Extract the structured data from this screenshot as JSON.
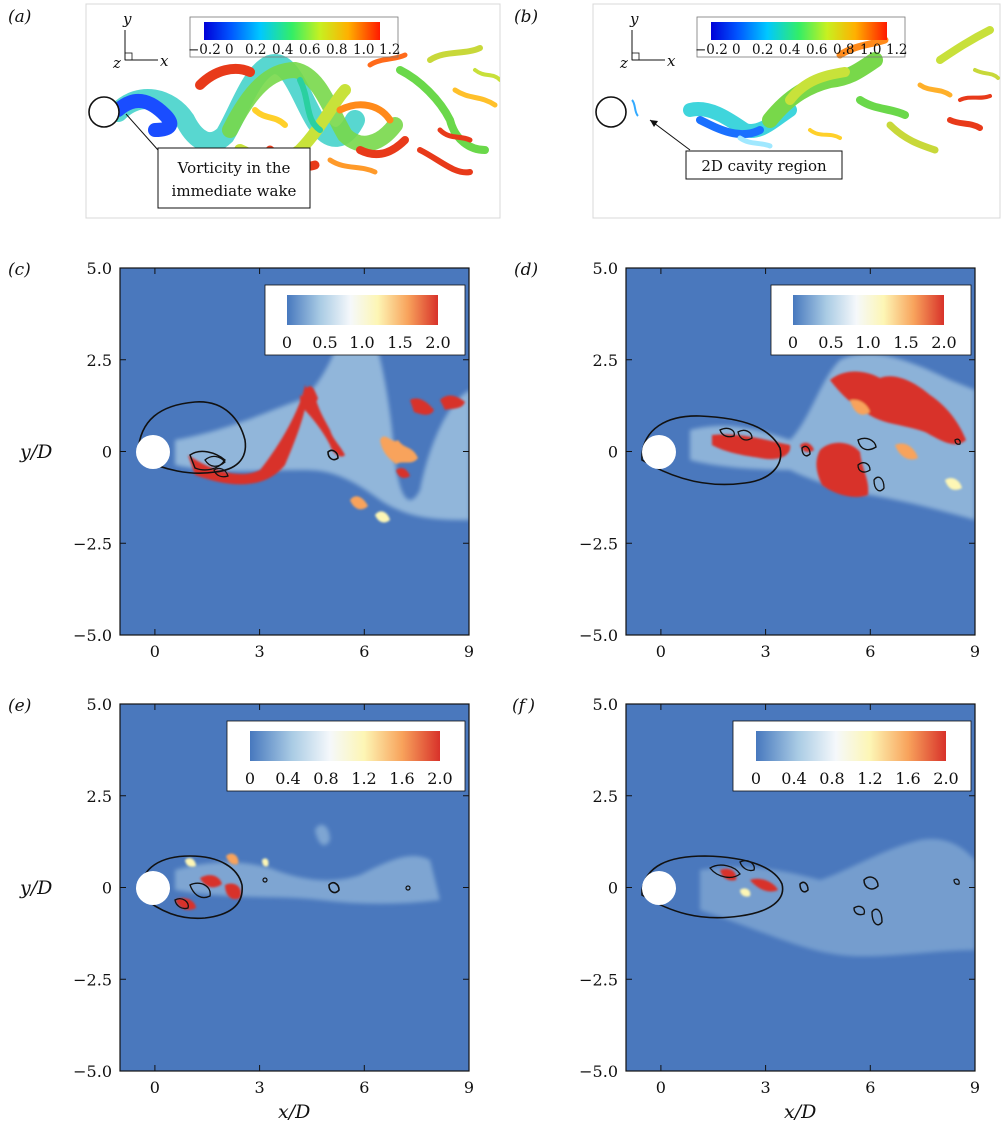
{
  "figure": {
    "panels": [
      {
        "id": "a",
        "label": "(a)",
        "kind": "isosurface",
        "colorbar_ticks": [
          "−0.2",
          "0",
          "0.2",
          "0.4",
          "0.6",
          "0.8",
          "1.0",
          "1.2"
        ],
        "triad": {
          "y": "y",
          "z": "z",
          "x": "x"
        },
        "annotation": [
          "Vorticity in the",
          "immediate wake"
        ]
      },
      {
        "id": "b",
        "label": "(b)",
        "kind": "isosurface",
        "colorbar_ticks": [
          "−0.2",
          "0",
          "0.2",
          "0.4",
          "0.6",
          "0.8",
          "1.0",
          "1.2"
        ],
        "triad": {
          "y": "y",
          "z": "z",
          "x": "x"
        },
        "annotation": [
          "2D cavity region"
        ]
      },
      {
        "id": "c",
        "label": "(c)",
        "kind": "contour",
        "colorbar_ticks": [
          "0",
          "0.5",
          "1.0",
          "1.5",
          "2.0"
        ],
        "show_ylabel": true,
        "show_xlabel": false
      },
      {
        "id": "d",
        "label": "(d)",
        "kind": "contour",
        "colorbar_ticks": [
          "0",
          "0.5",
          "1.0",
          "1.5",
          "2.0"
        ],
        "show_ylabel": false,
        "show_xlabel": false
      },
      {
        "id": "e",
        "label": "(e)",
        "kind": "contour",
        "colorbar_ticks": [
          "0",
          "0.4",
          "0.8",
          "1.2",
          "1.6",
          "2.0"
        ],
        "show_ylabel": true,
        "show_xlabel": true
      },
      {
        "id": "f",
        "label": "(f )",
        "kind": "contour",
        "colorbar_ticks": [
          "0",
          "0.4",
          "0.8",
          "1.2",
          "1.6",
          "2.0"
        ],
        "show_ylabel": false,
        "show_xlabel": true
      }
    ],
    "axes": {
      "xlabel": "x/D",
      "ylabel": "y/D",
      "xticks": [
        "0",
        "3",
        "6",
        "9"
      ],
      "yticks": [
        "5.0",
        "2.5",
        "0",
        "−2.5",
        "−5.0"
      ],
      "xlim": [
        -1,
        9
      ],
      "ylim": [
        -5,
        5
      ]
    }
  },
  "chart_data": [
    {
      "type": "heatmap",
      "panel": "c",
      "xlabel": "",
      "ylabel": "y/D",
      "xlim": [
        -1,
        9
      ],
      "ylim": [
        -5,
        5
      ],
      "xticks": [
        0,
        3,
        6,
        9
      ],
      "yticks": [
        -5.0,
        -2.5,
        0,
        2.5,
        5.0
      ],
      "colorbar": [
        0,
        0.5,
        1.0,
        1.5,
        2.0
      ],
      "colorbar_range": [
        0,
        2.0
      ]
    },
    {
      "type": "heatmap",
      "panel": "d",
      "xlabel": "",
      "ylabel": "",
      "xlim": [
        -1,
        9
      ],
      "ylim": [
        -5,
        5
      ],
      "xticks": [
        0,
        3,
        6,
        9
      ],
      "yticks": [
        -5.0,
        -2.5,
        0,
        2.5,
        5.0
      ],
      "colorbar": [
        0,
        0.5,
        1.0,
        1.5,
        2.0
      ],
      "colorbar_range": [
        0,
        2.0
      ]
    },
    {
      "type": "heatmap",
      "panel": "e",
      "xlabel": "x/D",
      "ylabel": "y/D",
      "xlim": [
        -1,
        9
      ],
      "ylim": [
        -5,
        5
      ],
      "xticks": [
        0,
        3,
        6,
        9
      ],
      "yticks": [
        -5.0,
        -2.5,
        0,
        2.5,
        5.0
      ],
      "colorbar": [
        0,
        0.4,
        0.8,
        1.2,
        1.6,
        2.0
      ],
      "colorbar_range": [
        0,
        2.0
      ]
    },
    {
      "type": "heatmap",
      "panel": "f",
      "xlabel": "x/D",
      "ylabel": "",
      "xlim": [
        -1,
        9
      ],
      "ylim": [
        -5,
        5
      ],
      "xticks": [
        0,
        3,
        6,
        9
      ],
      "yticks": [
        -5.0,
        -2.5,
        0,
        2.5,
        5.0
      ],
      "colorbar": [
        0,
        0.4,
        0.8,
        1.2,
        1.6,
        2.0
      ],
      "colorbar_range": [
        0,
        2.0
      ]
    }
  ]
}
